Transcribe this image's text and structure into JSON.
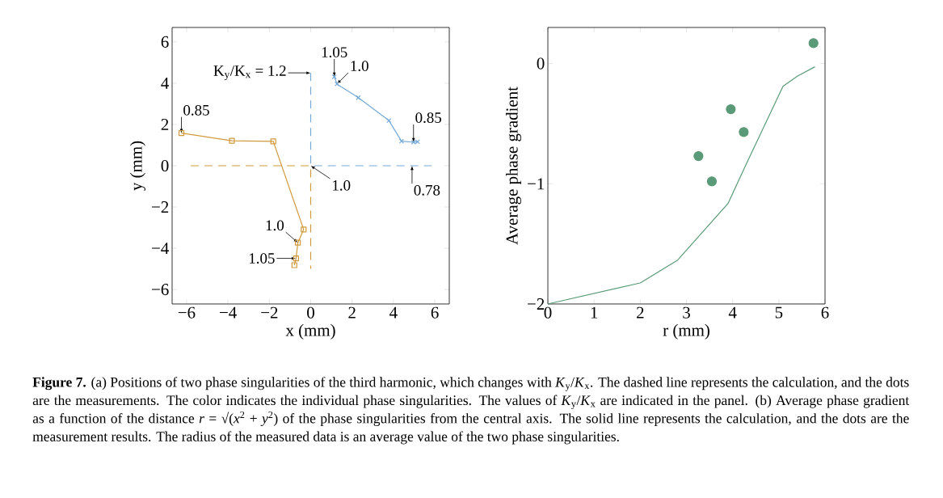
{
  "chart_data": [
    {
      "type": "line",
      "xlabel": "x (mm)",
      "ylabel": "y (mm)",
      "xlim": [
        -6.7,
        6.7
      ],
      "ylim": [
        -6.7,
        6.7
      ],
      "xticks": [
        {
          "value": -6,
          "label": "−6"
        },
        {
          "value": -4,
          "label": "−4"
        },
        {
          "value": -2,
          "label": "−2"
        },
        0,
        2,
        4,
        6
      ],
      "yticks": [
        {
          "value": -6,
          "label": "−6"
        },
        {
          "value": -4,
          "label": "−4"
        },
        {
          "value": -2,
          "label": "−2"
        },
        0,
        2,
        4,
        6
      ],
      "series": [
        {
          "color": "#d09a3c",
          "line_style": "dashed",
          "marker": "none",
          "x": [
            -5.8,
            0,
            0
          ],
          "values": [
            0,
            0,
            -5.0
          ]
        },
        {
          "color": "#74a9d8",
          "line_style": "dashed",
          "marker": "none",
          "x": [
            0,
            0,
            5.85
          ],
          "values": [
            4.5,
            0,
            0
          ]
        },
        {
          "color": "#d09a3c",
          "line_style": "solid",
          "marker": "square",
          "x": [
            -6.25,
            -3.81,
            -1.81,
            -0.34,
            -0.62,
            -0.71,
            -0.79
          ],
          "values": [
            1.58,
            1.21,
            1.18,
            -3.09,
            -3.73,
            -4.49,
            -4.82
          ]
        },
        {
          "color": "#74a9d8",
          "line_style": "solid",
          "marker": "cross",
          "x": [
            1.14,
            1.27,
            2.3,
            3.78,
            4.39,
            4.97,
            5.17
          ],
          "values": [
            4.31,
            3.96,
            3.3,
            2.19,
            1.19,
            1.14,
            1.16
          ]
        }
      ],
      "annotations": [
        {
          "text": "K$_{y}$/K$_{x}$ = 1.2",
          "x": 0,
          "y": 4.5
        },
        {
          "text": "1.05",
          "x": 1.14,
          "y": 4.31
        },
        {
          "text": "1.0",
          "x": 1.27,
          "y": 3.96
        },
        {
          "text": "0.85",
          "x": -6.25,
          "y": 1.58
        },
        {
          "text": "0.85",
          "x": 4.97,
          "y": 1.14
        },
        {
          "text": "1.0",
          "x": 0,
          "y": 0
        },
        {
          "text": "0.78",
          "x": 4.9,
          "y": 0
        },
        {
          "text": "1.0",
          "x": -0.62,
          "y": -3.73
        },
        {
          "text": "1.05",
          "x": -0.71,
          "y": -4.49
        },
        "**Figure 7.** (a) Positions of two phase singularities of the third harmonic, which changes with *K*$_{y}$/*K*$_{x}$. The dashed line represents the calculation, and the dots are the measurements. The color indicates the individual phase singularities. The values of *K*$_{y}$/*K*$_{x}$ are indicated in the panel. (b) Average phase gradient as a function of the distance *r* = √(*x*$^{2}$ + *y*$^{2}$) of the phase singularities from the central axis. The solid line represents the calculation, and the dots are the measurement results. The radius of the measured data is an average value of the two phase singularities."
      ]
    },
    {
      "type": "line",
      "xlabel": "r (mm)",
      "ylabel": "Average phase gradient",
      "xlim": [
        0,
        6
      ],
      "ylim": [
        -2,
        0.3
      ],
      "xticks": [
        0,
        1,
        2,
        3,
        4,
        5,
        6
      ],
      "yticks": [
        {
          "value": -2,
          "label": "−2"
        },
        {
          "value": -1,
          "label": "−1"
        },
        0
      ],
      "series": [
        {
          "color": "#5b9a78",
          "line_style": "solid",
          "marker": "none",
          "x": [
            0,
            2.0,
            2.81,
            3.9,
            4.29,
            5.09,
            5.4,
            5.78
          ],
          "values": [
            -2,
            -1.825,
            -1.635,
            -1.164,
            -0.84,
            -0.19,
            -0.105,
            -0.027
          ]
        },
        {
          "type": "scatter",
          "color": "#5b9a78",
          "marker": "circle",
          "x": [
            3.26,
            3.55,
            3.96,
            4.24,
            5.75
          ],
          "values": [
            -0.77,
            -0.98,
            -0.38,
            -0.57,
            0.17
          ]
        }
      ]
    }
  ]
}
